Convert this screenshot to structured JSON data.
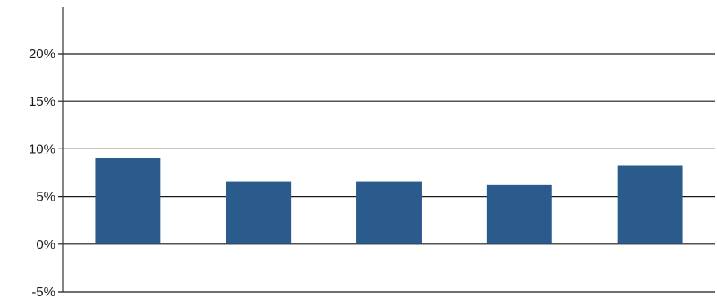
{
  "chart_data": {
    "type": "bar",
    "title": "",
    "xlabel": "",
    "ylabel": "",
    "categories": [
      "",
      "",
      "",
      "",
      ""
    ],
    "values": [
      9.1,
      6.6,
      6.6,
      6.2,
      8.3
    ],
    "ylim": [
      -5,
      20
    ],
    "yticks": [
      -5,
      0,
      5,
      10,
      15,
      20
    ],
    "ytick_labels": [
      "-5%",
      "0%",
      "5%",
      "10%",
      "15%",
      "20%"
    ],
    "grid": true,
    "legend": "none",
    "colors": {
      "bar": "#2b5a8c",
      "grid": "#1a1a1a",
      "axis": "#333333"
    }
  }
}
